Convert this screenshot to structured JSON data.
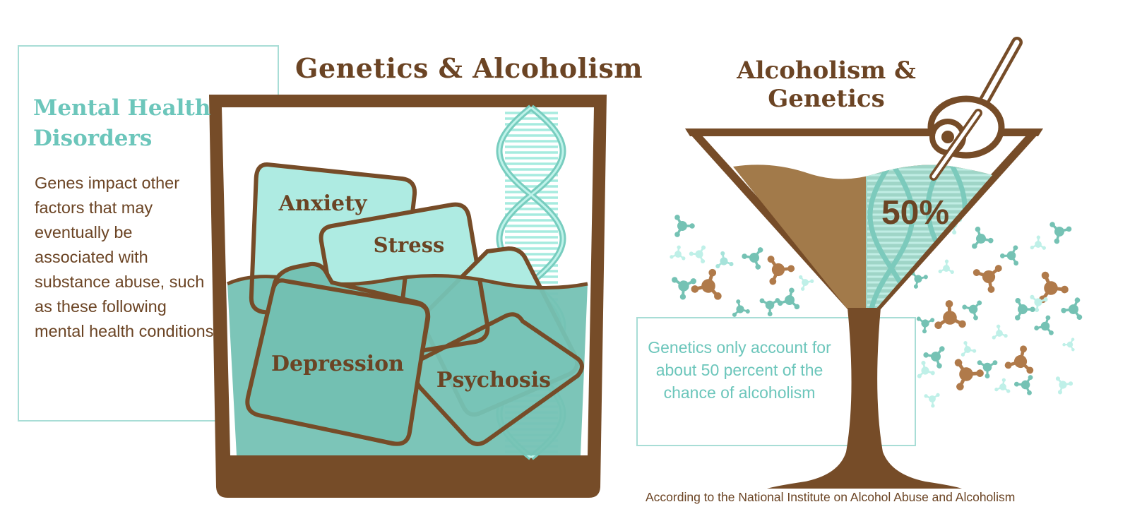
{
  "title": "Genetics & Alcoholism",
  "mental_health": {
    "heading": "Mental Health Disorders",
    "body": "Genes impact other factors that may eventually be associated with substance abuse, such as these following mental health conditions"
  },
  "glass": {
    "cubes": [
      "Anxiety",
      "Stress",
      "Depression",
      "Psychosis"
    ]
  },
  "martini": {
    "title": "Alcoholism & Genetics",
    "percent": "50%",
    "note": "Genetics only account for about 50 percent of the chance of alcoholism"
  },
  "source": "According to the National Institute on Alcohol Abuse and Alcoholism",
  "colors": {
    "brown": "#764c28",
    "dark_text": "#6b4424",
    "teal_light": "#aeebe2",
    "teal_liquid": "#75c2b4",
    "teal_text": "#6cc6bb",
    "liquid_brown": "#a27a4a"
  }
}
